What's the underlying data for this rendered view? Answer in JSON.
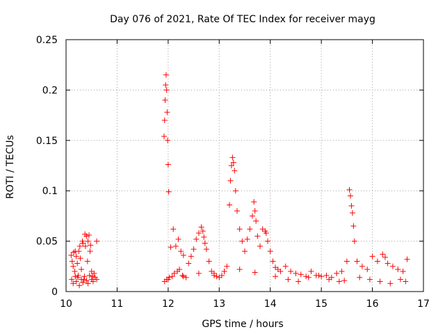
{
  "chart_data": {
    "type": "scatter",
    "title": "Day 076 of 2021, Rate Of TEC Index for receiver mayg",
    "xlabel": "GPS time / hours",
    "ylabel": "ROTI / TECUs",
    "xlim": [
      10,
      17
    ],
    "ylim": [
      0,
      0.25
    ],
    "grid": true,
    "x_ticks": [
      "10",
      "11",
      "12",
      "13",
      "14",
      "15",
      "16",
      "17"
    ],
    "y_ticks": [
      "0",
      "0.05",
      "0.1",
      "0.15",
      "0.2",
      "0.25"
    ],
    "marker": "+",
    "color": "#ff0000",
    "series": [
      {
        "name": "ROTI",
        "x": [
          10.1,
          10.12,
          10.14,
          10.15,
          10.17,
          10.18,
          10.2,
          10.22,
          10.24,
          10.25,
          10.27,
          10.28,
          10.3,
          10.32,
          10.33,
          10.35,
          10.37,
          10.38,
          10.4,
          10.42,
          10.43,
          10.45,
          10.47,
          10.48,
          10.5,
          10.52,
          10.55,
          10.6,
          10.11,
          10.14,
          10.18,
          10.2,
          10.23,
          10.26,
          10.3,
          10.33,
          10.36,
          10.4,
          10.43,
          10.46,
          10.5,
          10.53,
          10.57,
          10.6,
          11.92,
          11.93,
          11.94,
          11.95,
          11.96,
          11.97,
          11.98,
          11.99,
          12.0,
          12.01,
          12.05,
          12.1,
          12.15,
          12.2,
          12.25,
          12.3,
          11.93,
          11.97,
          12.02,
          12.08,
          12.12,
          12.18,
          12.22,
          12.28,
          12.35,
          12.4,
          12.45,
          12.5,
          12.55,
          12.6,
          12.65,
          12.68,
          12.7,
          12.72,
          12.75,
          12.8,
          12.85,
          12.9,
          12.95,
          13.0,
          13.05,
          13.1,
          13.15,
          13.2,
          13.22,
          13.24,
          13.26,
          13.28,
          13.3,
          13.32,
          13.35,
          13.4,
          13.45,
          13.5,
          13.55,
          13.6,
          13.65,
          13.68,
          13.7,
          13.72,
          13.75,
          13.8,
          13.85,
          13.9,
          13.92,
          13.95,
          14.0,
          14.05,
          14.1,
          14.15,
          14.2,
          14.3,
          14.4,
          14.5,
          14.6,
          14.7,
          14.8,
          14.9,
          15.0,
          15.1,
          15.2,
          15.3,
          15.4,
          15.5,
          15.55,
          15.57,
          15.59,
          15.61,
          15.63,
          15.65,
          15.7,
          15.8,
          15.9,
          16.0,
          16.1,
          16.2,
          16.25,
          16.3,
          16.4,
          16.5,
          16.6,
          16.68,
          12.0,
          12.3,
          12.6,
          12.9,
          13.1,
          13.4,
          13.7,
          14.1,
          14.35,
          14.55,
          14.75,
          14.95,
          15.15,
          15.35,
          15.45,
          15.75,
          15.95,
          16.15,
          16.35,
          16.55,
          16.65
        ],
        "y": [
          0.036,
          0.03,
          0.025,
          0.039,
          0.02,
          0.04,
          0.035,
          0.028,
          0.016,
          0.04,
          0.045,
          0.033,
          0.022,
          0.05,
          0.048,
          0.012,
          0.057,
          0.045,
          0.055,
          0.03,
          0.05,
          0.056,
          0.04,
          0.046,
          0.02,
          0.015,
          0.018,
          0.05,
          0.012,
          0.008,
          0.015,
          0.01,
          0.014,
          0.006,
          0.012,
          0.009,
          0.015,
          0.011,
          0.008,
          0.016,
          0.012,
          0.01,
          0.014,
          0.012,
          0.154,
          0.17,
          0.19,
          0.205,
          0.215,
          0.2,
          0.178,
          0.15,
          0.126,
          0.099,
          0.044,
          0.062,
          0.045,
          0.052,
          0.04,
          0.036,
          0.01,
          0.012,
          0.014,
          0.015,
          0.018,
          0.02,
          0.022,
          0.016,
          0.014,
          0.028,
          0.035,
          0.042,
          0.052,
          0.058,
          0.064,
          0.06,
          0.054,
          0.048,
          0.042,
          0.03,
          0.02,
          0.018,
          0.015,
          0.014,
          0.016,
          0.02,
          0.025,
          0.086,
          0.11,
          0.125,
          0.133,
          0.128,
          0.12,
          0.1,
          0.08,
          0.062,
          0.05,
          0.04,
          0.052,
          0.062,
          0.075,
          0.089,
          0.08,
          0.07,
          0.055,
          0.045,
          0.062,
          0.06,
          0.058,
          0.05,
          0.04,
          0.03,
          0.024,
          0.022,
          0.02,
          0.025,
          0.02,
          0.018,
          0.017,
          0.015,
          0.02,
          0.016,
          0.015,
          0.016,
          0.014,
          0.018,
          0.02,
          0.03,
          0.101,
          0.095,
          0.085,
          0.078,
          0.065,
          0.05,
          0.03,
          0.025,
          0.022,
          0.035,
          0.03,
          0.037,
          0.034,
          0.028,
          0.025,
          0.022,
          0.02,
          0.032,
          0.012,
          0.015,
          0.018,
          0.016,
          0.02,
          0.022,
          0.019,
          0.015,
          0.012,
          0.01,
          0.014,
          0.016,
          0.012,
          0.01,
          0.011,
          0.014,
          0.012,
          0.01,
          0.008,
          0.012,
          0.01
        ]
      }
    ]
  }
}
